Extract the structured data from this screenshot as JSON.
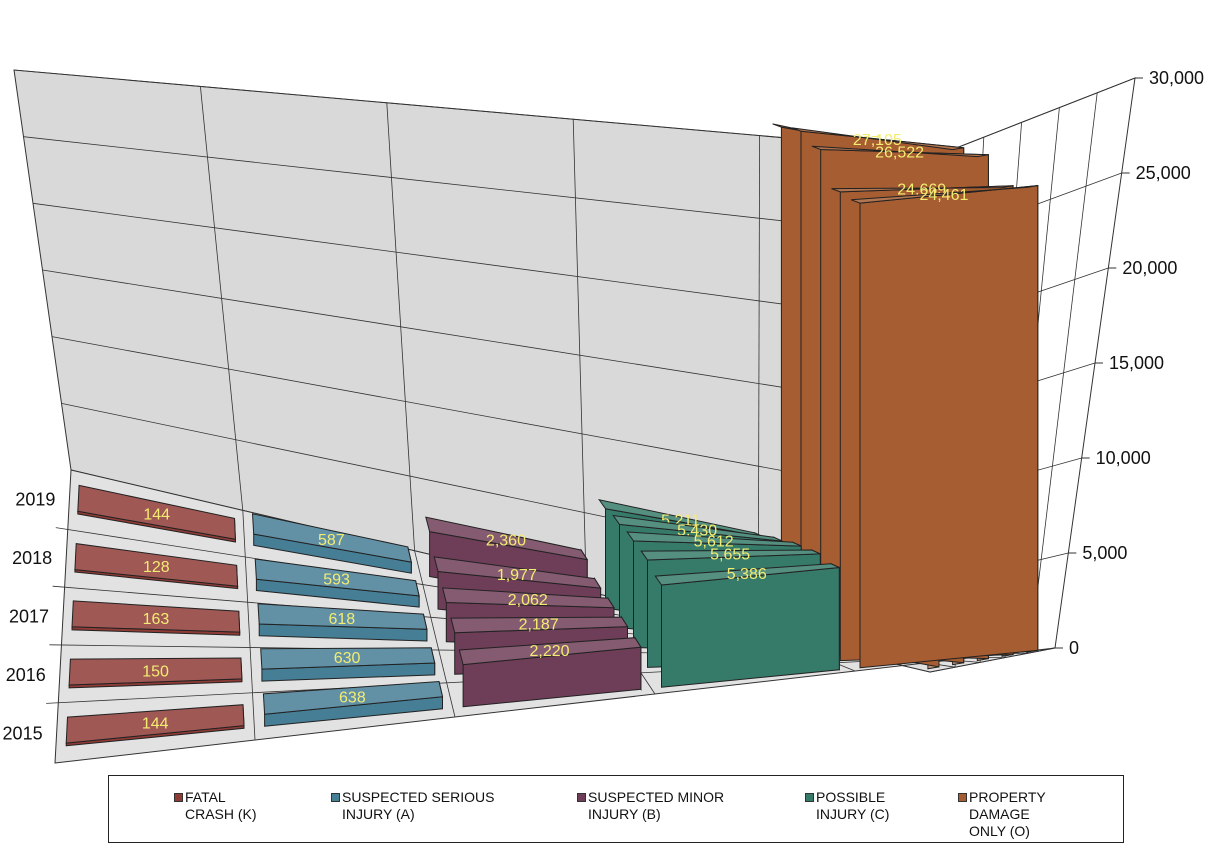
{
  "chart_data": {
    "type": "bar",
    "subtype": "3d-clustered-depth",
    "years": [
      "2015",
      "2016",
      "2017",
      "2018",
      "2019"
    ],
    "series": [
      {
        "name": "FATAL\nCRASH (K)",
        "values": [
          144,
          150,
          163,
          128,
          144
        ],
        "color": "#8e3b36",
        "values_text": [
          "144",
          "150",
          "163",
          "128",
          "144"
        ]
      },
      {
        "name": "SUSPECTED SERIOUS\nINJURY (A)",
        "values": [
          638,
          630,
          618,
          593,
          587
        ],
        "color": "#467e96",
        "values_text": [
          "638",
          "630",
          "618",
          "593",
          "587"
        ]
      },
      {
        "name": "SUSPECTED MINOR\nINJURY (B)",
        "values": [
          2220,
          2187,
          2062,
          1977,
          2360
        ],
        "color": "#6e3e58",
        "values_text": [
          "2,220",
          "2,187",
          "2,062",
          "1,977",
          "2,360"
        ]
      },
      {
        "name": "POSSIBLE\nINJURY (C)",
        "values": [
          5386,
          5655,
          5612,
          5430,
          5211
        ],
        "color": "#367b6a",
        "values_text": [
          "5,386",
          "5,655",
          "5,612",
          "5,430",
          "5,211"
        ]
      },
      {
        "name": "PROPERTY\nDAMAGE\nONLY (O)",
        "values": [
          24461,
          24669,
          26522,
          27105,
          26937
        ],
        "color": "#a65d31",
        "values_text": [
          "24,461",
          "24,669",
          "26,522",
          "27,105",
          "26,937"
        ]
      }
    ],
    "zlim": [
      0,
      30000
    ],
    "z_ticks": [
      "0",
      "5,000",
      "10,000",
      "15,000",
      "20,000",
      "25,000",
      "30,000"
    ],
    "grid": true,
    "legend_position": "bottom",
    "label_color": "#f3ec73",
    "wall_color": "#d9d9d9"
  }
}
